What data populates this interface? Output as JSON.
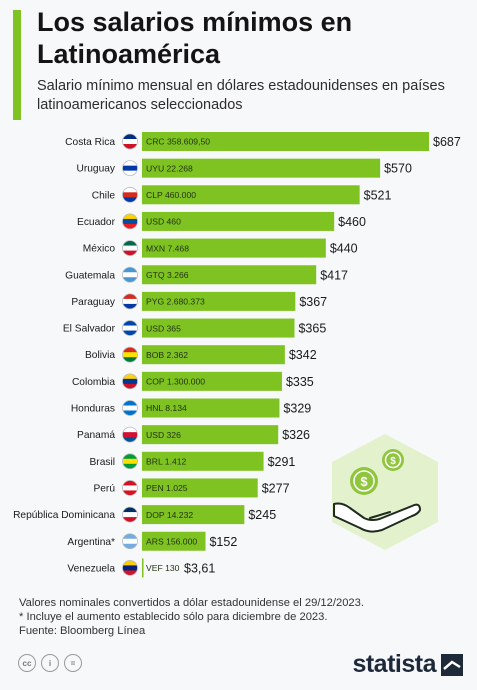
{
  "header": {
    "title": "Los salarios mínimos en Latinoamérica",
    "subtitle": "Salario mínimo mensual en dólares estadounidenses en países latinoamericanos seleccionados"
  },
  "footer": {
    "note1": "Valores nominales convertidos a dólar estadounidense el 29/12/2023.",
    "note2": "* Incluye el aumento establecido sólo para diciembre de 2023.",
    "source": "Fuente: Bloomberg Línea"
  },
  "brand": {
    "name": "statista"
  },
  "colors": {
    "bar": "#7ec321",
    "accent": "#7ec321",
    "text": "#1a1a1a"
  },
  "chart_data": {
    "type": "bar",
    "orientation": "horizontal",
    "categories": [
      "Costa Rica",
      "Uruguay",
      "Chile",
      "Ecuador",
      "México",
      "Guatemala",
      "Paraguay",
      "El Salvador",
      "Bolivia",
      "Colombia",
      "Honduras",
      "Panamá",
      "Brasil",
      "Perú",
      "República Dominicana",
      "Argentina*",
      "Venezuela"
    ],
    "values": [
      687,
      570,
      521,
      460,
      440,
      417,
      367,
      365,
      342,
      335,
      329,
      326,
      291,
      277,
      245,
      152,
      3.61
    ],
    "value_labels": [
      "$687",
      "$570",
      "$521",
      "$460",
      "$440",
      "$417",
      "$367",
      "$365",
      "$342",
      "$335",
      "$329",
      "$326",
      "$291",
      "$277",
      "$245",
      "$152",
      "$3,61"
    ],
    "local_labels": [
      "CRC 358.609,50",
      "UYU 22.268",
      "CLP 460.000",
      "USD 460",
      "MXN 7.468",
      "GTQ 3.266",
      "PYG 2.680.373",
      "USD 365",
      "BOB 2.362",
      "COP 1.300.000",
      "HNL 8.134",
      "USD 326",
      "BRL 1.412",
      "PEN 1.025",
      "DOP 14.232",
      "ARS 156.000",
      "VEF 130"
    ],
    "flag_icons": [
      "costa-rica-flag-icon",
      "uruguay-flag-icon",
      "chile-flag-icon",
      "ecuador-flag-icon",
      "mexico-flag-icon",
      "guatemala-flag-icon",
      "paraguay-flag-icon",
      "el-salvador-flag-icon",
      "bolivia-flag-icon",
      "colombia-flag-icon",
      "honduras-flag-icon",
      "panama-flag-icon",
      "brazil-flag-icon",
      "peru-flag-icon",
      "dominican-republic-flag-icon",
      "argentina-flag-icon",
      "venezuela-flag-icon"
    ],
    "flag_colors": [
      [
        "#002b7f",
        "#ffffff",
        "#ce1126"
      ],
      [
        "#ffffff",
        "#0038a8",
        "#ffffff"
      ],
      [
        "#ffffff",
        "#d52b1e",
        "#0039a6"
      ],
      [
        "#ffd100",
        "#034ea2",
        "#ed1c24"
      ],
      [
        "#006847",
        "#ffffff",
        "#ce1126"
      ],
      [
        "#4997d0",
        "#ffffff",
        "#4997d0"
      ],
      [
        "#d52b1e",
        "#ffffff",
        "#0038a8"
      ],
      [
        "#0047ab",
        "#ffffff",
        "#0047ab"
      ],
      [
        "#d52b1e",
        "#f9e300",
        "#007934"
      ],
      [
        "#fcd116",
        "#003893",
        "#ce1126"
      ],
      [
        "#0073cf",
        "#ffffff",
        "#0073cf"
      ],
      [
        "#ffffff",
        "#d21034",
        "#005293"
      ],
      [
        "#009c3b",
        "#ffdf00",
        "#009c3b"
      ],
      [
        "#d91023",
        "#ffffff",
        "#d91023"
      ],
      [
        "#002d62",
        "#ffffff",
        "#ce1126"
      ],
      [
        "#74acdf",
        "#ffffff",
        "#74acdf"
      ],
      [
        "#ffcc00",
        "#00247d",
        "#cf142b"
      ]
    ],
    "xlim": [
      0,
      687
    ]
  }
}
